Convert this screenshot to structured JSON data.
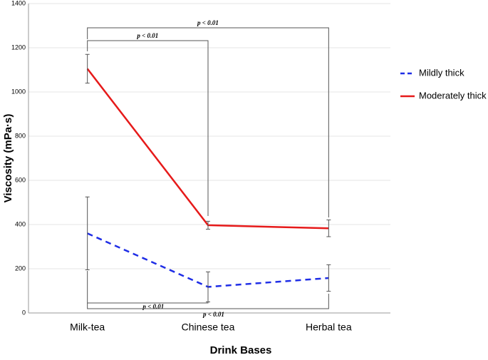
{
  "chart_data": {
    "type": "line",
    "x_label": "Drink Bases",
    "y_label": "Viscosity (mPa·s)",
    "categories": [
      "Milk-tea",
      "Chinese tea",
      "Herbal tea"
    ],
    "series": [
      {
        "name": "Mildly thick",
        "color": "#1f2ee6",
        "dash": true,
        "values": [
          360,
          118,
          158
        ],
        "errors": [
          165,
          68,
          60
        ]
      },
      {
        "name": "Moderately thick",
        "color": "#e61a1a",
        "dash": false,
        "values": [
          1105,
          397,
          383
        ],
        "errors": [
          65,
          18,
          38
        ]
      }
    ],
    "ylim": [
      0,
      1400
    ],
    "yticks": [
      0,
      200,
      400,
      600,
      800,
      1000,
      1200,
      1400
    ],
    "grid": true,
    "legend": "right",
    "annotations": [
      "p < 0.01",
      "p < 0.01",
      "p < 0.01",
      "p < 0.01"
    ]
  }
}
